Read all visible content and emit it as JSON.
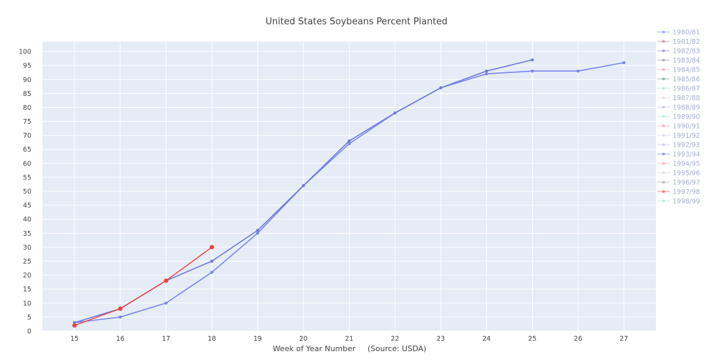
{
  "chart_data": {
    "type": "line",
    "title": "United States Soybeans Percent Planted",
    "xlabel": "Week of Year Number     (Source: USDA)",
    "ylabel": "",
    "xlim": [
      14.3,
      27.7
    ],
    "ylim": [
      0,
      103.5
    ],
    "x_ticks": [
      15,
      16,
      17,
      18,
      19,
      20,
      21,
      22,
      23,
      24,
      25,
      26,
      27
    ],
    "y_ticks": [
      0,
      5,
      10,
      15,
      20,
      25,
      30,
      35,
      40,
      45,
      50,
      55,
      60,
      65,
      70,
      75,
      80,
      85,
      90,
      95,
      100
    ],
    "grid": true,
    "legend_position": "right",
    "plot_background": "#e5ecf6",
    "series": [
      {
        "name": "1980/81",
        "color": "#7a86ee",
        "opacity": 1,
        "x": [
          15,
          16,
          17,
          18,
          19,
          20,
          21,
          22,
          23,
          24,
          25,
          26,
          27
        ],
        "y": [
          3,
          5,
          10,
          21,
          35,
          52,
          67,
          78,
          87,
          92,
          93,
          93,
          96
        ]
      },
      {
        "name": "1981/82",
        "color": "#b07a8a",
        "opacity": 1,
        "x": [],
        "y": []
      },
      {
        "name": "1982/83",
        "color": "#8a7ec8",
        "opacity": 1,
        "x": [],
        "y": []
      },
      {
        "name": "1983/84",
        "color": "#8f8fa8",
        "opacity": 1,
        "x": [],
        "y": []
      },
      {
        "name": "1984/85",
        "color": "#e6a1b0",
        "opacity": 1,
        "x": [],
        "y": []
      },
      {
        "name": "1985/86",
        "color": "#6c9a8c",
        "opacity": 1,
        "x": [],
        "y": []
      },
      {
        "name": "1986/87",
        "color": "#a6e8c4",
        "opacity": 1,
        "x": [],
        "y": []
      },
      {
        "name": "1987/88",
        "color": "#f0d2dc",
        "opacity": 1,
        "x": [],
        "y": []
      },
      {
        "name": "1988/89",
        "color": "#c8b8e2",
        "opacity": 1,
        "x": [],
        "y": []
      },
      {
        "name": "1989/90",
        "color": "#a2e3c2",
        "opacity": 1,
        "x": [],
        "y": []
      },
      {
        "name": "1990/91",
        "color": "#f09aaa",
        "opacity": 1,
        "x": [],
        "y": []
      },
      {
        "name": "1991/92",
        "color": "#dcd2ec",
        "opacity": 1,
        "x": [],
        "y": []
      },
      {
        "name": "1992/93",
        "color": "#c4bcec",
        "opacity": 1,
        "x": [],
        "y": []
      },
      {
        "name": "1993/94",
        "color": "#7079d8",
        "opacity": 1,
        "x": [
          15,
          16,
          17,
          18,
          19,
          20,
          21,
          22,
          23,
          24,
          25
        ],
        "y": [
          3,
          8,
          18,
          25,
          36,
          52,
          68,
          78,
          87,
          93,
          97
        ]
      },
      {
        "name": "1994/95",
        "color": "#f0a4a4",
        "opacity": 1,
        "x": [],
        "y": []
      },
      {
        "name": "1995/96",
        "color": "#d7cfe0",
        "opacity": 1,
        "x": [],
        "y": []
      },
      {
        "name": "1996/97",
        "color": "#a9a0b8",
        "opacity": 1,
        "x": [],
        "y": []
      },
      {
        "name": "1997/98",
        "color": "#ee4444",
        "opacity": 1,
        "x": [
          15,
          16,
          17,
          18
        ],
        "y": [
          2,
          8,
          18,
          30
        ]
      },
      {
        "name": "1998/99",
        "color": "#9fe6c6",
        "opacity": 1,
        "x": [],
        "y": []
      }
    ]
  }
}
